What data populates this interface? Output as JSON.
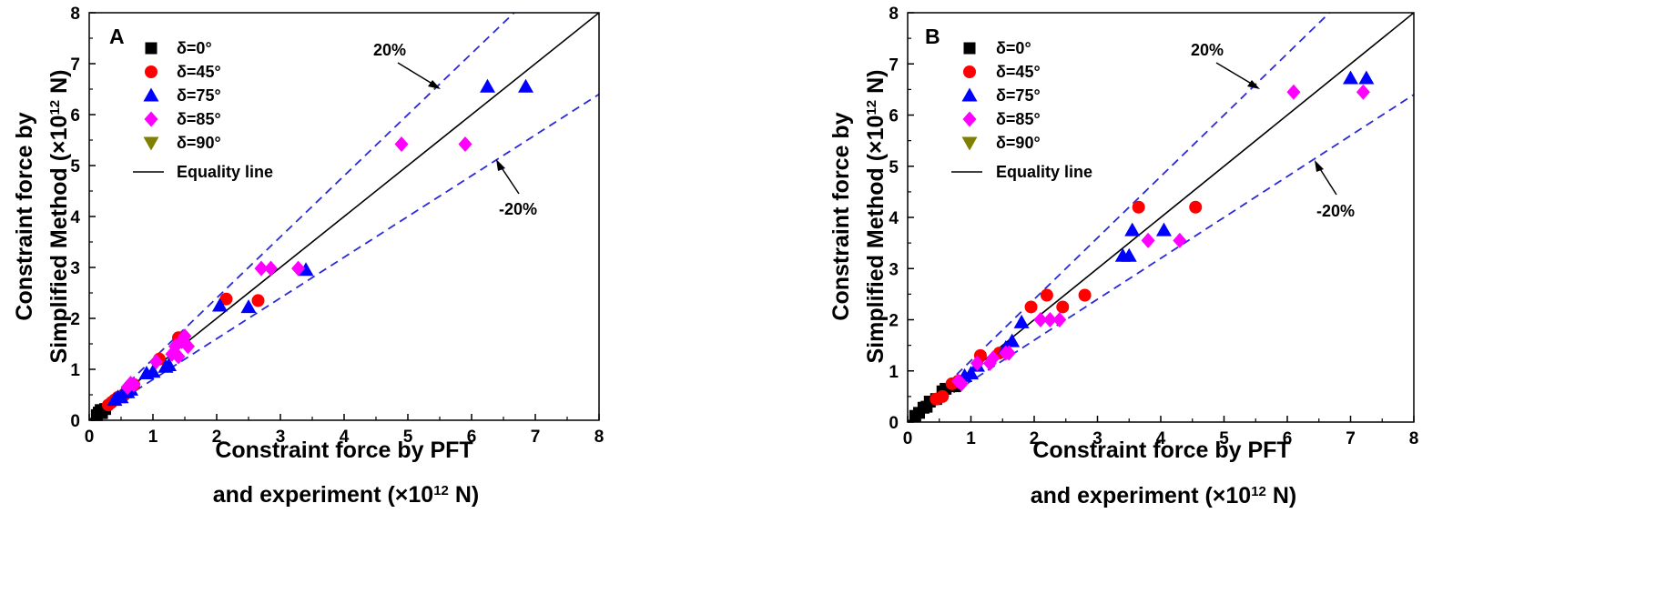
{
  "chart_data": [
    {
      "type": "scatter",
      "panel_label": "A",
      "xlabel_line1": "Constraint force by PFT",
      "xlabel_line2": "and experiment (×10",
      "xlabel_sup": "12",
      "xlabel_tail": " N)",
      "ylabel_line1": "Constraint force by",
      "ylabel_line2": "Simplified Method (×10",
      "ylabel_sup": "12",
      "ylabel_tail": " N)",
      "xlim": [
        0,
        8
      ],
      "ylim": [
        0,
        8
      ],
      "xticks": [
        "0",
        "1",
        "2",
        "3",
        "4",
        "5",
        "6",
        "7",
        "8"
      ],
      "yticks": [
        "0",
        "1",
        "2",
        "3",
        "4",
        "5",
        "6",
        "7",
        "8"
      ],
      "legend": [
        "δ=0°",
        "δ=45°",
        "δ=75°",
        "δ=85°",
        "δ=90°",
        "Equality line"
      ],
      "annotations": {
        "upper": "20%",
        "lower": "-20%"
      },
      "series": [
        {
          "name": "δ=0°",
          "marker": "square",
          "color": "#000000",
          "points": [
            [
              0.12,
              0.1
            ],
            [
              0.15,
              0.15
            ],
            [
              0.18,
              0.2
            ],
            [
              0.2,
              0.14
            ],
            [
              0.25,
              0.22
            ]
          ]
        },
        {
          "name": "δ=45°",
          "marker": "circle",
          "color": "#ff0000",
          "points": [
            [
              0.3,
              0.3
            ],
            [
              0.35,
              0.35
            ],
            [
              0.4,
              0.4
            ],
            [
              0.45,
              0.45
            ],
            [
              0.55,
              0.5
            ],
            [
              0.6,
              0.6
            ],
            [
              0.7,
              0.7
            ],
            [
              1.1,
              1.2
            ],
            [
              1.4,
              1.62
            ],
            [
              2.15,
              2.38
            ],
            [
              2.65,
              2.35
            ]
          ]
        },
        {
          "name": "δ=75°",
          "marker": "triangle-up",
          "color": "#0000ff",
          "points": [
            [
              0.4,
              0.4
            ],
            [
              0.45,
              0.45
            ],
            [
              0.5,
              0.45
            ],
            [
              0.55,
              0.55
            ],
            [
              0.6,
              0.55
            ],
            [
              0.65,
              0.6
            ],
            [
              0.9,
              0.92
            ],
            [
              1.0,
              0.95
            ],
            [
              1.2,
              1.05
            ],
            [
              1.25,
              1.08
            ],
            [
              2.05,
              2.25
            ],
            [
              2.5,
              2.22
            ],
            [
              3.4,
              2.95
            ],
            [
              6.25,
              6.55
            ],
            [
              6.85,
              6.55
            ]
          ]
        },
        {
          "name": "δ=85°",
          "marker": "diamond",
          "color": "#ff00ff",
          "points": [
            [
              0.6,
              0.65
            ],
            [
              0.65,
              0.72
            ],
            [
              0.7,
              0.7
            ],
            [
              1.05,
              1.15
            ],
            [
              1.3,
              1.3
            ],
            [
              1.35,
              1.45
            ],
            [
              1.4,
              1.25
            ],
            [
              1.45,
              1.55
            ],
            [
              1.5,
              1.65
            ],
            [
              1.55,
              1.45
            ],
            [
              2.7,
              2.98
            ],
            [
              2.85,
              2.98
            ],
            [
              3.28,
              2.98
            ],
            [
              4.9,
              5.42
            ],
            [
              5.9,
              5.42
            ]
          ]
        },
        {
          "name": "δ=90°",
          "marker": "triangle-down",
          "color": "#808000",
          "points": []
        }
      ]
    },
    {
      "type": "scatter",
      "panel_label": "B",
      "xlabel_line1": "Constraint force by PFT",
      "xlabel_line2": "and experiment (×10",
      "xlabel_sup": "12",
      "xlabel_tail": " N)",
      "ylabel_line1": "Constraint force by",
      "ylabel_line2": "Simplified Method (×10",
      "ylabel_sup": "12",
      "ylabel_tail": " N)",
      "xlim": [
        0,
        8
      ],
      "ylim": [
        0,
        8
      ],
      "xticks": [
        "0",
        "1",
        "2",
        "3",
        "4",
        "5",
        "6",
        "7",
        "8"
      ],
      "yticks": [
        "0",
        "1",
        "2",
        "3",
        "4",
        "5",
        "6",
        "7",
        "8"
      ],
      "legend": [
        "δ=0°",
        "δ=45°",
        "δ=75°",
        "δ=85°",
        "δ=90°",
        "Equality line"
      ],
      "annotations": {
        "upper": "20%",
        "lower": "-20%"
      },
      "series": [
        {
          "name": "δ=0°",
          "marker": "square",
          "color": "#000000",
          "points": [
            [
              0.12,
              0.12
            ],
            [
              0.18,
              0.18
            ],
            [
              0.25,
              0.28
            ],
            [
              0.3,
              0.3
            ],
            [
              0.35,
              0.4
            ],
            [
              0.45,
              0.45
            ],
            [
              0.55,
              0.6
            ],
            [
              0.6,
              0.65
            ],
            [
              0.75,
              0.7
            ]
          ]
        },
        {
          "name": "δ=45°",
          "marker": "circle",
          "color": "#ff0000",
          "points": [
            [
              0.45,
              0.45
            ],
            [
              0.55,
              0.5
            ],
            [
              0.7,
              0.75
            ],
            [
              0.8,
              0.8
            ],
            [
              1.15,
              1.3
            ],
            [
              1.45,
              1.35
            ],
            [
              1.95,
              2.25
            ],
            [
              2.2,
              2.48
            ],
            [
              2.45,
              2.25
            ],
            [
              2.8,
              2.48
            ],
            [
              3.65,
              4.2
            ],
            [
              4.55,
              4.2
            ]
          ]
        },
        {
          "name": "δ=75°",
          "marker": "triangle-up",
          "color": "#0000ff",
          "points": [
            [
              0.9,
              0.9
            ],
            [
              1.0,
              0.95
            ],
            [
              1.1,
              1.1
            ],
            [
              1.55,
              1.45
            ],
            [
              1.65,
              1.58
            ],
            [
              1.8,
              1.95
            ],
            [
              3.4,
              3.25
            ],
            [
              3.5,
              3.25
            ],
            [
              3.55,
              3.75
            ],
            [
              4.05,
              3.75
            ],
            [
              7.0,
              6.72
            ],
            [
              7.25,
              6.72
            ]
          ]
        },
        {
          "name": "δ=85°",
          "marker": "diamond",
          "color": "#ff00ff",
          "points": [
            [
              0.8,
              0.8
            ],
            [
              0.85,
              0.75
            ],
            [
              1.1,
              1.15
            ],
            [
              1.3,
              1.15
            ],
            [
              1.35,
              1.25
            ],
            [
              1.55,
              1.35
            ],
            [
              1.6,
              1.35
            ],
            [
              2.1,
              2.0
            ],
            [
              2.25,
              2.0
            ],
            [
              2.4,
              2.0
            ],
            [
              3.8,
              3.55
            ],
            [
              4.3,
              3.55
            ],
            [
              6.1,
              6.45
            ],
            [
              7.2,
              6.45
            ]
          ]
        },
        {
          "name": "δ=90°",
          "marker": "triangle-down",
          "color": "#808000",
          "points": []
        }
      ]
    }
  ]
}
